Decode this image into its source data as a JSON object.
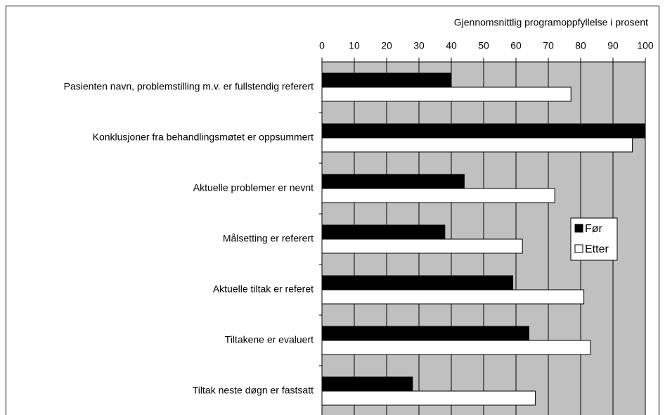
{
  "chart_data": {
    "type": "hbar",
    "xlabel": "Gjennomsnittlig programoppfyllelse i prosent",
    "categories": [
      "Pasienten navn, problemstilling m.v. er fullstendig referert",
      "Konklusjoner fra behandlingsmøtet er oppsummert",
      "Aktuelle problemer er nevnt",
      "Målsetting er referert",
      "Aktuelle tiltak er referet",
      "Tiltakene er evaluert",
      "Tiltak neste døgn er fastsatt"
    ],
    "series": [
      {
        "name": "Før",
        "color": "#000000",
        "values": [
          40,
          100,
          44,
          38,
          59,
          64,
          28
        ]
      },
      {
        "name": "Etter",
        "color": "#ffffff",
        "values": [
          77,
          96,
          72,
          62,
          81,
          83,
          66
        ]
      }
    ],
    "xlim": [
      0,
      100
    ],
    "xticks": [
      0,
      10,
      20,
      30,
      40,
      50,
      60,
      70,
      80,
      90,
      100
    ],
    "grid": true,
    "legend": "right"
  }
}
